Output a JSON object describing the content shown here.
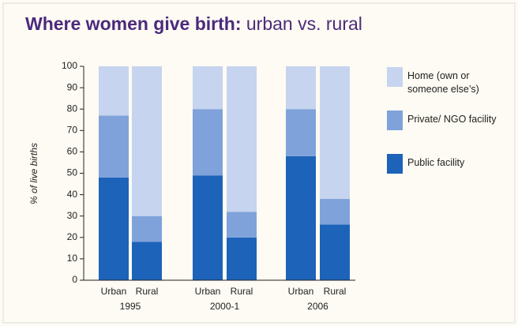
{
  "chart_data": {
    "type": "stacked_bar",
    "title": "Where women give birth:",
    "subtitle": "urban vs. rural",
    "y_label": "% of live births",
    "categories": [
      "Urban",
      "Rural",
      "Urban",
      "Rural",
      "Urban",
      "Rural"
    ],
    "groups": [
      "1995",
      "2000-1",
      "2006"
    ],
    "series": [
      {
        "name": "Public facility",
        "color": "#1d63b9",
        "values": [
          48,
          18,
          49,
          20,
          58,
          26
        ]
      },
      {
        "name": "Private/ NGO facility",
        "color": "#7fa2da",
        "values": [
          29,
          12,
          31,
          12,
          22,
          12
        ]
      },
      {
        "name": "Home (own or someone else’s)",
        "color": "#c6d4ef",
        "values": [
          23,
          70,
          20,
          68,
          20,
          62
        ]
      }
    ],
    "ylim": [
      0,
      100
    ],
    "yticks": [
      0,
      10,
      20,
      30,
      40,
      50,
      60,
      70,
      80,
      90,
      100
    ],
    "legend": "right"
  }
}
